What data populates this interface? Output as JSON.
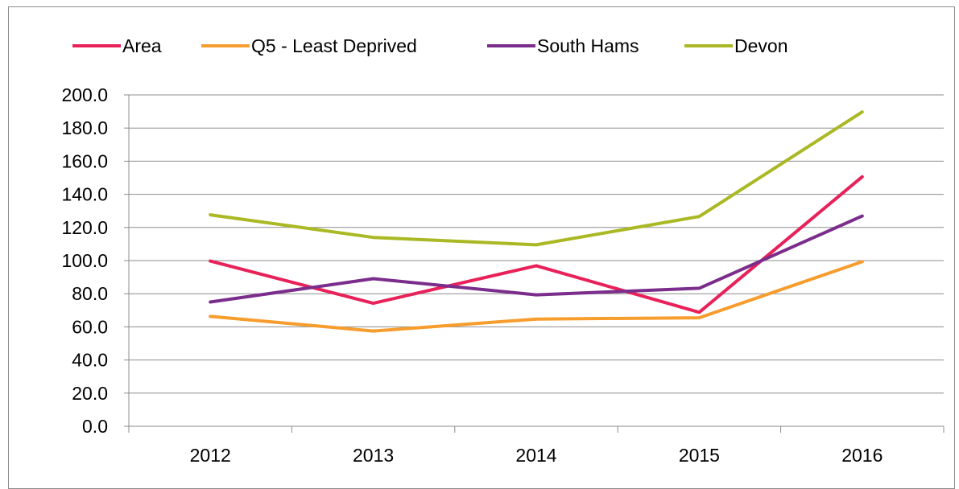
{
  "chart_data": {
    "type": "line",
    "categories": [
      "2012",
      "2013",
      "2014",
      "2015",
      "2016"
    ],
    "series": [
      {
        "name": "Area",
        "color": "#e8215a",
        "values": [
          99.7,
          74.2,
          96.9,
          68.8,
          150.6
        ]
      },
      {
        "name": "Q5 - Least Deprived",
        "color": "#f79d2e",
        "values": [
          66.3,
          57.5,
          64.7,
          65.5,
          99.3
        ]
      },
      {
        "name": "South Hams",
        "color": "#7b2d8b",
        "values": [
          75.0,
          89.1,
          79.3,
          83.3,
          126.9
        ]
      },
      {
        "name": "Devon",
        "color": "#a9b823",
        "values": [
          127.6,
          114.0,
          109.5,
          126.6,
          189.7
        ]
      }
    ],
    "y_ticks": [
      "0.0",
      "20.0",
      "40.0",
      "60.0",
      "80.0",
      "100.0",
      "120.0",
      "140.0",
      "160.0",
      "180.0",
      "200.0"
    ],
    "ylim": [
      0,
      200
    ],
    "y_step": 20,
    "grid": "horizontal",
    "legend_position": "top",
    "title": "",
    "xlabel": "",
    "ylabel": ""
  }
}
